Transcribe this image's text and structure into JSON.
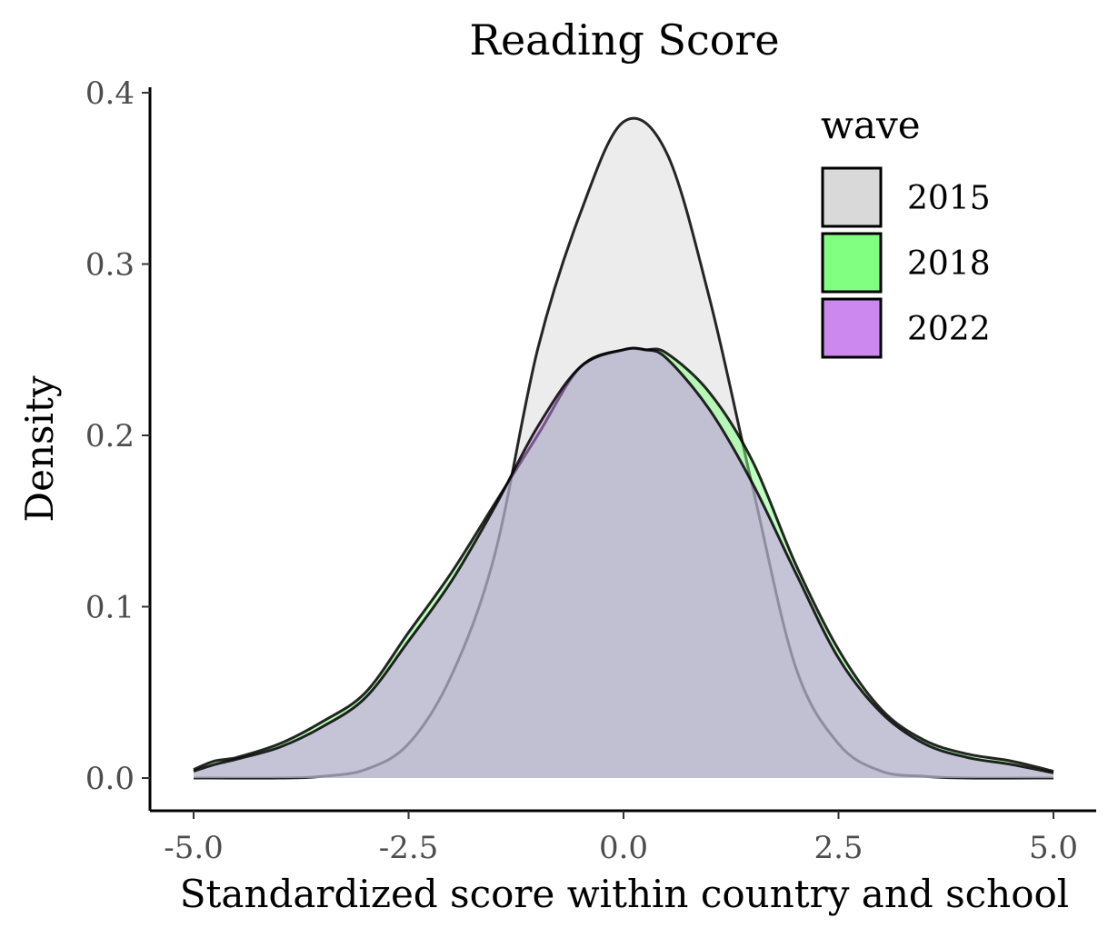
{
  "chart_data": {
    "type": "area",
    "title": "Reading Score",
    "xlabel": "Standardized score within country and school",
    "ylabel": "Density",
    "xlim": [
      -5,
      5
    ],
    "ylim": [
      0,
      0.4
    ],
    "x_ticks": [
      -5.0,
      -2.5,
      0.0,
      2.5,
      5.0
    ],
    "x_tick_labels": [
      "-5.0",
      "-2.5",
      "0.0",
      "2.5",
      "5.0"
    ],
    "y_ticks": [
      0.0,
      0.1,
      0.2,
      0.3,
      0.4
    ],
    "y_tick_labels": [
      "0.0",
      "0.1",
      "0.2",
      "0.3",
      "0.4"
    ],
    "grid": false,
    "legend": {
      "title": "wave",
      "position": "top-right"
    },
    "series": [
      {
        "name": "2015",
        "fill": "#d9d9d9",
        "x": [
          -5.0,
          -4.0,
          -3.5,
          -3.0,
          -2.5,
          -2.0,
          -1.5,
          -1.0,
          -0.5,
          0.0,
          0.5,
          1.0,
          1.5,
          2.0,
          2.5,
          3.0,
          3.5,
          4.0,
          5.0
        ],
        "y": [
          0.0,
          0.0,
          0.001,
          0.005,
          0.02,
          0.06,
          0.13,
          0.25,
          0.33,
          0.383,
          0.365,
          0.28,
          0.17,
          0.065,
          0.02,
          0.004,
          0.001,
          0.0,
          0.0
        ]
      },
      {
        "name": "2018",
        "fill": "#80ff80",
        "x": [
          -5.0,
          -4.75,
          -4.5,
          -4.0,
          -3.5,
          -3.0,
          -2.5,
          -2.0,
          -1.5,
          -1.0,
          -0.5,
          0.0,
          0.25,
          0.5,
          1.0,
          1.5,
          2.0,
          2.5,
          3.0,
          3.5,
          4.0,
          4.5,
          5.0
        ],
        "y": [
          0.005,
          0.01,
          0.012,
          0.02,
          0.033,
          0.05,
          0.085,
          0.12,
          0.16,
          0.2,
          0.24,
          0.25,
          0.25,
          0.248,
          0.225,
          0.185,
          0.125,
          0.075,
          0.04,
          0.022,
          0.014,
          0.01,
          0.004
        ]
      },
      {
        "name": "2022",
        "fill": "#cc88ee",
        "x": [
          -5.0,
          -4.75,
          -4.5,
          -4.0,
          -3.5,
          -3.0,
          -2.5,
          -2.0,
          -1.5,
          -1.0,
          -0.5,
          0.0,
          0.25,
          0.5,
          1.0,
          1.5,
          2.0,
          2.5,
          3.0,
          3.5,
          4.0,
          4.5,
          5.0
        ],
        "y": [
          0.004,
          0.008,
          0.011,
          0.018,
          0.03,
          0.047,
          0.08,
          0.115,
          0.158,
          0.205,
          0.24,
          0.25,
          0.25,
          0.245,
          0.215,
          0.172,
          0.12,
          0.07,
          0.038,
          0.02,
          0.012,
          0.008,
          0.003
        ]
      }
    ]
  }
}
